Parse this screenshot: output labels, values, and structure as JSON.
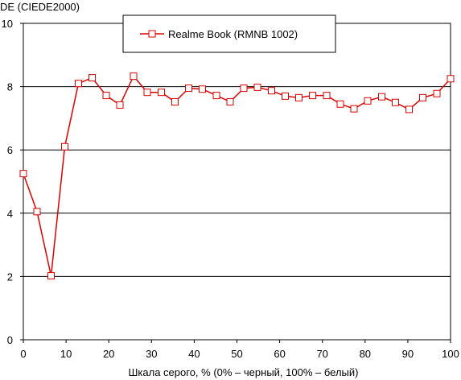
{
  "chart_data": {
    "type": "line",
    "ylabel": "DE (CIEDE2000)",
    "xlabel": "Шкала серого, % (0% – черный, 100% – белый)",
    "xlim": [
      0,
      100
    ],
    "ylim": [
      0,
      10
    ],
    "x_ticks": [
      "0",
      "10",
      "20",
      "30",
      "40",
      "50",
      "60",
      "70",
      "80",
      "90",
      "100"
    ],
    "y_ticks": [
      "0",
      "2",
      "4",
      "6",
      "8",
      "10"
    ],
    "grid": "horizontal",
    "legend_position": "top-center",
    "series": [
      {
        "name": "Realme Book (RMNB 1002)",
        "color": "#dd0000",
        "marker": "square",
        "x": [
          0,
          3.2,
          6.5,
          9.7,
          12.9,
          16.1,
          19.4,
          22.6,
          25.8,
          29.0,
          32.3,
          35.5,
          38.7,
          41.9,
          45.2,
          48.4,
          51.6,
          54.8,
          58.1,
          61.3,
          64.5,
          67.7,
          71.0,
          74.2,
          77.4,
          80.6,
          83.9,
          87.1,
          90.3,
          93.5,
          96.8,
          100
        ],
        "y": [
          5.25,
          4.05,
          2.02,
          6.1,
          8.1,
          8.28,
          7.72,
          7.42,
          8.33,
          7.82,
          7.82,
          7.52,
          7.95,
          7.92,
          7.72,
          7.52,
          7.95,
          7.98,
          7.87,
          7.7,
          7.65,
          7.72,
          7.72,
          7.45,
          7.3,
          7.55,
          7.68,
          7.5,
          7.28,
          7.65,
          7.78,
          8.25
        ]
      }
    ]
  }
}
